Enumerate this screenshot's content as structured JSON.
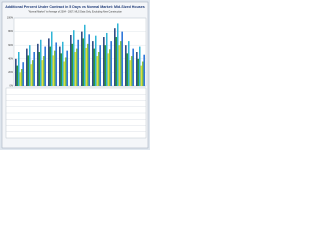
{
  "chart_data": {
    "type": "bar",
    "title": "Additional Percent Under Contract in 5 Days vs Normal Market: Mid-Sized Houses",
    "subtitle": "\"Normal Market\" is Average of 2004 - 2007; MLS Data Only, Excluding New Construction",
    "categories": [
      null,
      null,
      null,
      null,
      null,
      null,
      null,
      null,
      null,
      null,
      null,
      null
    ],
    "series": [
      {
        "color": "#1f3b78",
        "values": [
          40,
          55,
          62,
          70,
          58,
          75,
          80,
          66,
          72,
          85,
          60,
          50
        ]
      },
      {
        "color": "#2f9a3c",
        "values": [
          30,
          45,
          50,
          58,
          48,
          62,
          70,
          55,
          60,
          72,
          48,
          40
        ]
      },
      {
        "color": "#29b3d6",
        "values": [
          50,
          60,
          68,
          80,
          65,
          82,
          90,
          74,
          78,
          92,
          66,
          58
        ]
      },
      {
        "color": "#e3dc3a",
        "values": [
          20,
          32,
          38,
          45,
          36,
          50,
          56,
          44,
          48,
          60,
          38,
          30
        ]
      },
      {
        "color": "#8cc63f",
        "values": [
          25,
          38,
          44,
          52,
          42,
          55,
          62,
          50,
          54,
          66,
          44,
          36
        ]
      },
      {
        "color": "#1b6ad6",
        "values": [
          35,
          50,
          58,
          64,
          52,
          68,
          76,
          60,
          66,
          80,
          55,
          46
        ]
      }
    ],
    "ylim": [
      0,
      100
    ],
    "yticks": [
      {
        "value": 0,
        "label": "0%"
      },
      {
        "value": 20,
        "label": "20%"
      },
      {
        "value": 40,
        "label": "40%"
      },
      {
        "value": 60,
        "label": "60%"
      },
      {
        "value": 80,
        "label": "80%"
      },
      {
        "value": 100,
        "label": "100%"
      }
    ],
    "grid": true
  }
}
